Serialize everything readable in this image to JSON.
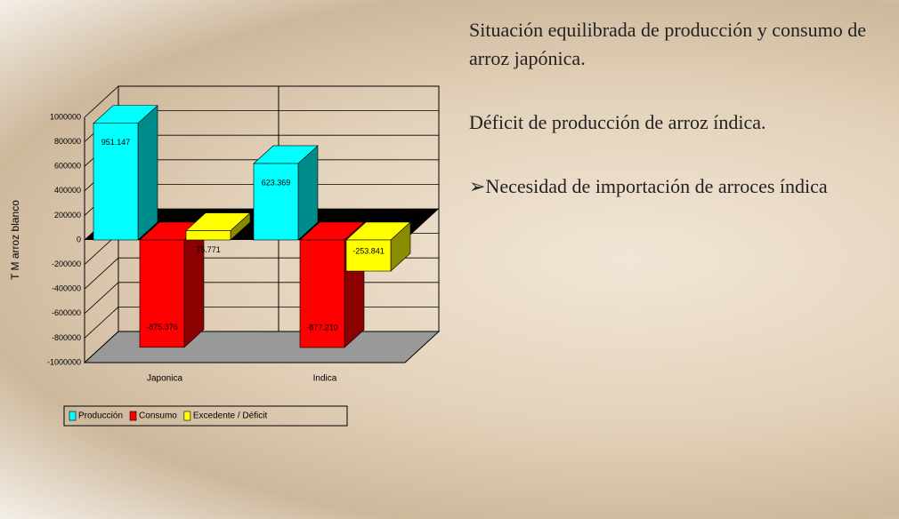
{
  "chart_data": {
    "type": "bar3d",
    "y_label": "T M arroz blanco",
    "categories": [
      "Japonica",
      "Indica"
    ],
    "series": [
      {
        "name": "Producción",
        "color": "#00ffff",
        "values": [
          951147,
          623369
        ],
        "value_labels": [
          "951.147",
          "623.369"
        ]
      },
      {
        "name": "Consumo",
        "color": "#ff0000",
        "values": [
          -875376,
          -877210
        ],
        "value_labels": [
          "-875.376",
          "-877.210"
        ]
      },
      {
        "name": "Excedente / Déficit",
        "color": "#ffff00",
        "values": [
          75771,
          -253841
        ],
        "value_labels": [
          "75.771",
          "-253.841"
        ]
      }
    ],
    "ylim": [
      -1000000,
      1000000
    ],
    "yticks": [
      -1000000,
      -800000,
      -600000,
      -400000,
      -200000,
      0,
      200000,
      400000,
      600000,
      800000,
      1000000
    ],
    "grid": true,
    "legend": "bottom"
  },
  "slide": {
    "points": [
      "Situación equilibrada de producción y consumo de arroz japónica.",
      "Déficit de producción de arroz índica.",
      "➢Necesidad de importación de arroces índica"
    ]
  }
}
